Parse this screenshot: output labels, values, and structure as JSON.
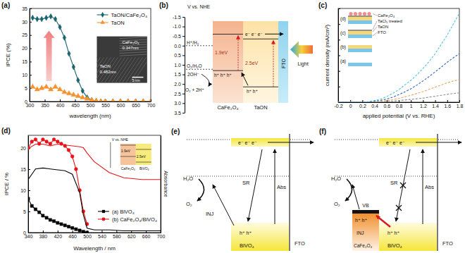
{
  "chart_data": [
    {
      "type": "line",
      "title": "(a)",
      "x_label": "wavelength (nm)",
      "y_label": "IPCE (%)",
      "x": [
        310,
        325,
        340,
        355,
        370,
        385,
        400,
        415,
        430,
        445,
        460,
        475,
        490,
        505,
        520,
        535,
        550,
        575,
        600,
        625,
        650,
        675,
        700
      ],
      "series": [
        {
          "name": "TaON/CaFe₂O₄",
          "color": "#1a6470",
          "marker": "diamond",
          "values": [
            31.5,
            31,
            31,
            31.5,
            32,
            31,
            28,
            24,
            18,
            13,
            8,
            4,
            1.5,
            0.5,
            0.2,
            0,
            0,
            0,
            0,
            0,
            0,
            0,
            0
          ]
        },
        {
          "name": "TaON",
          "color": "#f5922f",
          "marker": "triangle",
          "values": [
            5.5,
            4.5,
            5,
            5.5,
            4.5,
            5.5,
            4.5,
            3.5,
            3,
            2.5,
            2,
            1.5,
            1,
            0.5,
            0.2,
            0,
            0,
            0,
            0,
            0,
            0,
            0,
            0
          ]
        }
      ],
      "xlim": [
        300,
        700
      ],
      "xticks": [
        300,
        350,
        400,
        450,
        500,
        550,
        600,
        650,
        700
      ],
      "ylim": [
        0,
        35
      ],
      "yticks": [
        0,
        5,
        10,
        15,
        20,
        25,
        30,
        35
      ],
      "legend": "upper right",
      "annotations": [
        "CaFe₂O₄",
        "0.347nm",
        "TaON",
        "0.482nm",
        "5 nm"
      ]
    },
    {
      "type": "line",
      "title": "(c)",
      "x_label": "applied potential (V vs. RHE)",
      "y_label": "current density (mA/cm²)",
      "x": [
        -0.2,
        -0.1,
        0,
        0.1,
        0.2,
        0.3,
        0.4,
        0.5,
        0.6,
        0.7,
        0.8,
        0.9,
        1,
        1.1,
        1.2,
        1.3,
        1.4,
        1.5,
        1.6,
        1.7,
        1.8
      ],
      "series": [
        {
          "name": "(a)",
          "color": "#8c8c8c",
          "line_style": "dashed",
          "values": [
            0,
            0,
            0,
            0,
            0,
            0,
            0,
            0.01,
            0.02,
            0.03,
            0.05,
            0.07,
            0.09,
            0.11,
            0.13,
            0.16,
            0.19,
            0.22,
            0.25,
            0.28,
            0.3
          ]
        },
        {
          "name": "(b)",
          "color": "#e8a45c",
          "line_style": "dashed",
          "values": [
            0,
            0,
            0,
            0,
            0,
            0,
            0.01,
            0.03,
            0.05,
            0.08,
            0.12,
            0.17,
            0.22,
            0.28,
            0.34,
            0.41,
            0.48,
            0.55,
            0.62,
            0.68,
            0.72
          ]
        },
        {
          "name": "(c)",
          "color": "#2f66b3",
          "line_style": "dashed",
          "values": [
            0,
            0,
            0,
            0,
            0,
            0.01,
            0.03,
            0.06,
            0.1,
            0.16,
            0.24,
            0.33,
            0.43,
            0.55,
            0.68,
            0.82,
            0.97,
            1.12,
            1.28,
            1.42,
            1.55
          ]
        },
        {
          "name": "(d)",
          "color": "#4fc3df",
          "line_style": "dashed",
          "values": [
            0,
            0,
            0,
            0,
            0,
            0.02,
            0.05,
            0.1,
            0.18,
            0.28,
            0.4,
            0.55,
            0.7,
            0.88,
            1.08,
            1.3,
            1.55,
            1.85,
            2.15,
            2.5,
            2.85
          ]
        }
      ],
      "xlim": [
        -0.2,
        1.8
      ],
      "xticks": [
        -0.2,
        0,
        0.2,
        0.4,
        0.6,
        0.8,
        1,
        1.2,
        1.4,
        1.6,
        1.8
      ],
      "ylim": [
        0,
        3
      ],
      "yticks": [
        0,
        0.5,
        1,
        1.5,
        2,
        2.5,
        3
      ],
      "tick_labels": "x",
      "annotations": [
        "CaFe₂O₄",
        "TaCl₅ treated",
        "TaON",
        "FTO"
      ]
    },
    {
      "type": "line",
      "title": "(d)",
      "x_label": "Wavelength / nm",
      "y_label": "IPCE / %",
      "y2_label": "Absorbance",
      "series": [
        {
          "name": "(a) BiVO₄",
          "color": "#000000",
          "marker": "square",
          "x": [
            340,
            350,
            360,
            370,
            380,
            390,
            400,
            410,
            420,
            430,
            440,
            450,
            460,
            470,
            480,
            490,
            500
          ],
          "values": [
            8,
            6.3,
            5.5,
            4.8,
            4,
            3.5,
            3,
            2.7,
            2.3,
            2,
            1.7,
            1.4,
            1.1,
            0.8,
            0.5,
            0.2,
            0
          ]
        },
        {
          "name": "(b) CaFe₂O₄/BiVO₄",
          "color": "#e8141b",
          "marker": "circle",
          "x": [
            340,
            350,
            360,
            370,
            380,
            390,
            400,
            410,
            420,
            430,
            440,
            450,
            460,
            470,
            480,
            490,
            500
          ],
          "values": [
            20,
            21.5,
            22,
            21,
            22,
            21.5,
            21,
            22,
            21.5,
            21,
            20.5,
            19.5,
            18,
            15,
            10,
            5,
            2
          ]
        },
        {
          "color": "#000000",
          "axis": "y2",
          "x": [
            340,
            360,
            380,
            400,
            420,
            440,
            460,
            480,
            490,
            500,
            520,
            560,
            600,
            650,
            700
          ],
          "values": [
            0.6,
            0.72,
            0.73,
            0.72,
            0.71,
            0.7,
            0.66,
            0.45,
            0.2,
            0.05,
            0.03,
            0.03,
            0.02,
            0.02,
            0.02
          ]
        },
        {
          "color": "#e8141b",
          "axis": "y2",
          "x": [
            340,
            360,
            380,
            400,
            420,
            440,
            460,
            480,
            490,
            500,
            520,
            560,
            600,
            650,
            700
          ],
          "values": [
            0.95,
            1,
            1,
            0.98,
            1,
            0.99,
            0.98,
            0.97,
            0.96,
            0.9,
            0.8,
            0.68,
            0.62,
            0.6,
            0.6
          ]
        }
      ],
      "xlim": [
        340,
        700
      ],
      "xticks": [
        340,
        380,
        420,
        460,
        500,
        540,
        580,
        620,
        660,
        700
      ],
      "ylim": [
        0,
        23
      ],
      "yticks": [
        0,
        5,
        10,
        15,
        20
      ],
      "y2lim": [
        0,
        1.1
      ],
      "y2ticks": [],
      "legend": "lower right",
      "inset": {
        "axis_label": "V vs. NHE",
        "gaps": [
          "1.9eV",
          "2.5eV"
        ],
        "layers": [
          "CaFe₂O₄",
          "BiVO₄"
        ]
      }
    }
  ],
  "diagrams": {
    "b": {
      "title": "(b)",
      "scale": {
        "label": "V vs. NHE",
        "lim": [
          -1.5,
          3.5
        ],
        "ticks": [
          -1.5,
          {
            "value": -1,
            "label": "-1.0"
          },
          -0.5,
          {
            "value": 0,
            "label": "0.0"
          },
          0.5,
          {
            "value": 1,
            "label": "1.0"
          },
          1.5,
          {
            "value": 2,
            "label": "2.0"
          },
          2.5,
          {
            "value": 3,
            "label": "3.0"
          },
          3.5
        ]
      },
      "levels": [
        {
          "label": "H⁺/H₂",
          "value": 0
        },
        {
          "label": "O₂/H₂O",
          "value": 1.23
        }
      ],
      "layers": [
        {
          "label": "CaFe₂O₄",
          "cb": -0.6,
          "vb": 1.3,
          "gap": "1.9eV"
        },
        {
          "label": "TaON",
          "cb": -0.35,
          "vb": 2.15,
          "gap": "2.5eV"
        },
        {
          "label": "FTO"
        }
      ],
      "texts": {
        "reactant": "2OH⁻",
        "product": "O₂ + 2H⁺",
        "electrons": "e⁻ e⁻ e⁻",
        "holes_cafe2o4": "h⁺ h⁺ h⁺",
        "holes_taon": "h⁺ h⁺",
        "light": "Light"
      }
    },
    "e": {
      "title": "(e)",
      "labels": {
        "semiconductor": "BiVO₄",
        "contact": "FTO",
        "water": "H₂O",
        "oxygen": "O₂",
        "recombination": "SR",
        "injection": "INJ",
        "absorption": "Abs",
        "electrons": "e⁻ e⁻ e⁻",
        "holes": "h⁺ h⁺"
      }
    },
    "f": {
      "title": "(f)",
      "labels": {
        "semiconductor": "BiVO₄",
        "contact": "FTO",
        "water": "H₂O",
        "oxygen": "O₂",
        "recombination": "SR",
        "injection": "INJ",
        "absorption": "Abs",
        "electrons": "e⁻ e⁻ e⁻",
        "holes": "h⁺ h⁺",
        "cocatalyst": "CaFe₂O₄",
        "valence_band": "VB",
        "cocatalyst_holes": "h⁺ h⁺"
      }
    }
  }
}
